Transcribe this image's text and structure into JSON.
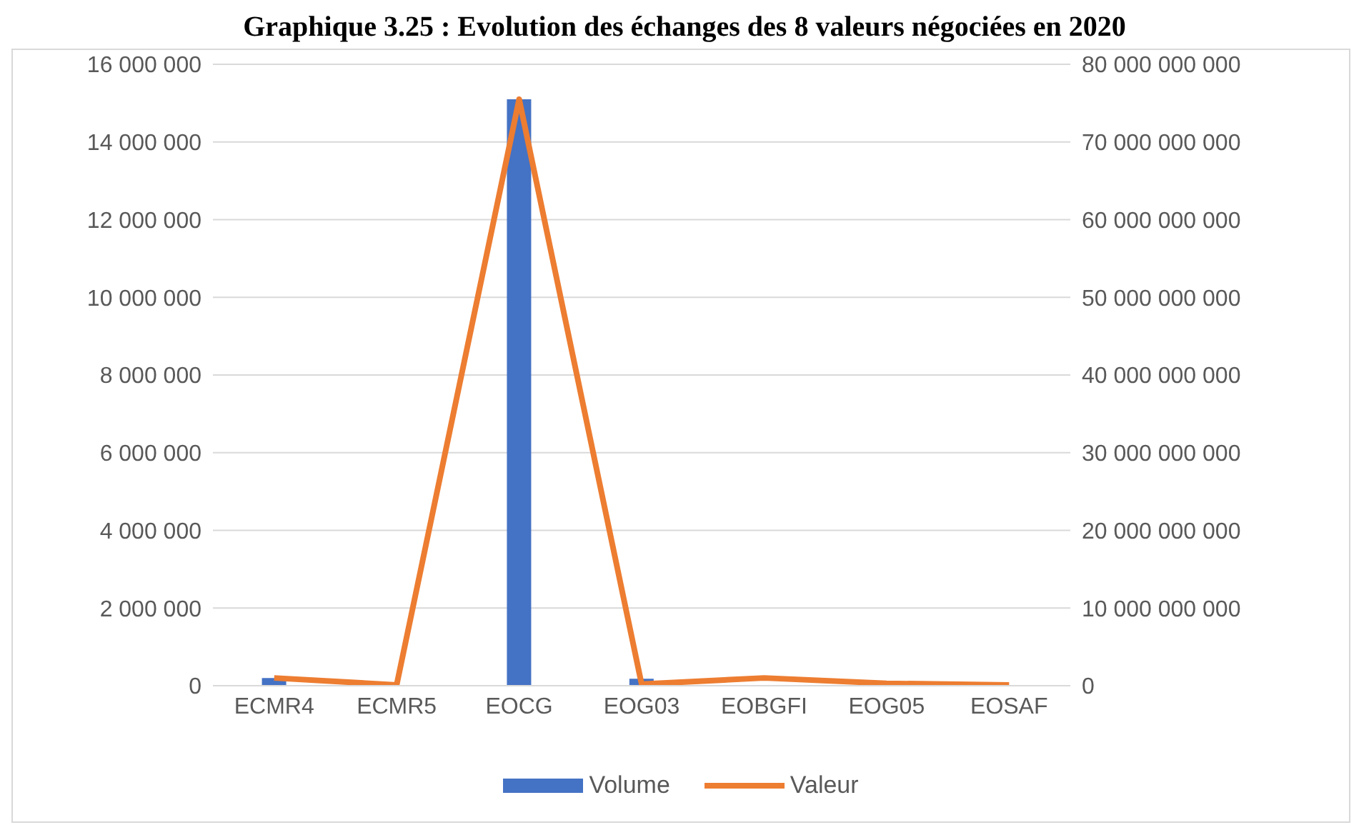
{
  "chart_data": {
    "type": "bar",
    "title": "Graphique 3.25 : Evolution des échanges des 8 valeurs négociées en 2020",
    "categories": [
      "ECMR4",
      "ECMR5",
      "EOCG",
      "EOG03",
      "EOBGFI",
      "EOG05",
      "EOSAF"
    ],
    "series": [
      {
        "name": "Volume",
        "color": "#4472c4",
        "values": [
          200000,
          0,
          15100000,
          180000,
          0,
          0,
          0
        ]
      },
      {
        "name": "Valeur",
        "type": "line",
        "axis": "y2",
        "color": "#ed7d31",
        "values": [
          1000000000,
          100000000,
          75500000000,
          200000000,
          1000000000,
          300000000,
          100000000
        ]
      }
    ],
    "ylim": [
      0,
      16000000
    ],
    "yticks": [
      0,
      2000000,
      4000000,
      6000000,
      8000000,
      10000000,
      12000000,
      14000000,
      16000000
    ],
    "y2lim": [
      0,
      80000000000
    ],
    "y2ticks": [
      0,
      10000000000,
      20000000000,
      30000000000,
      40000000000,
      50000000000,
      60000000000,
      70000000000,
      80000000000
    ],
    "grid": "y",
    "legend": "bottom",
    "marker": "none",
    "line_style": "solid"
  }
}
